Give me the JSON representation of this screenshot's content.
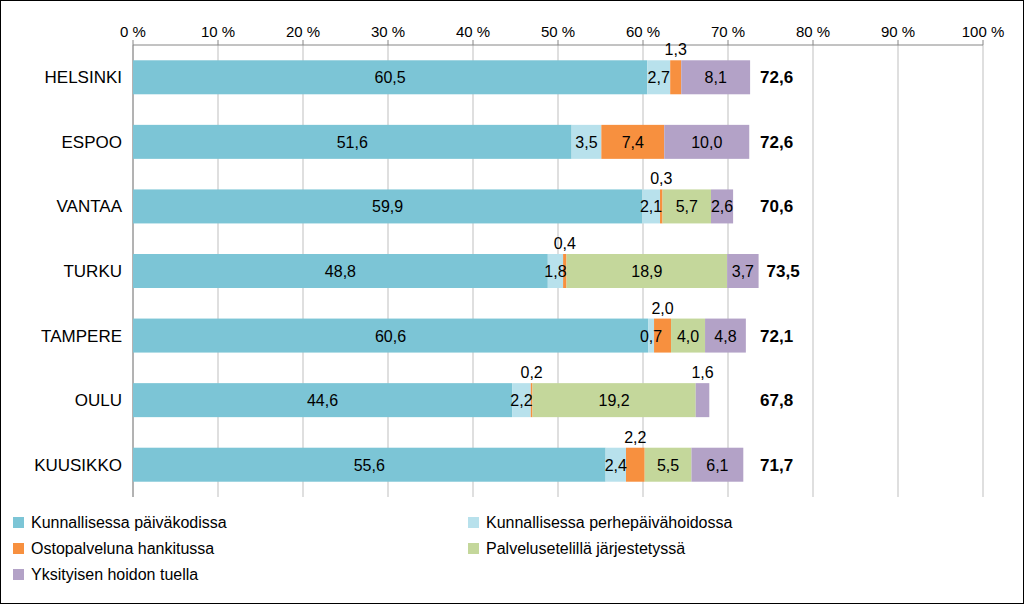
{
  "chart_data": {
    "type": "bar",
    "orientation": "horizontal",
    "stacked": true,
    "data_labels": true,
    "grid": true,
    "legend": "bottom",
    "categories": [
      "HELSINKI",
      "ESPOO",
      "VANTAA",
      "TURKU",
      "TAMPERE",
      "OULU",
      "KUUSIKKO"
    ],
    "xlim": [
      0,
      100
    ],
    "xticks": [
      {
        "value": 0,
        "label": "0 %"
      },
      {
        "value": 10,
        "label": "10 %"
      },
      {
        "value": 20,
        "label": "20 %"
      },
      {
        "value": 30,
        "label": "30 %"
      },
      {
        "value": 40,
        "label": "40 %"
      },
      {
        "value": 50,
        "label": "50 %"
      },
      {
        "value": 60,
        "label": "60 %"
      },
      {
        "value": 70,
        "label": "70 %"
      },
      {
        "value": 80,
        "label": "80 %"
      },
      {
        "value": 90,
        "label": "90 %"
      },
      {
        "value": 100,
        "label": "100 %"
      }
    ],
    "series": [
      {
        "name": "Kunnallisessa päiväkodissa",
        "color": "#7cc5d6",
        "values": [
          60.5,
          51.6,
          59.9,
          48.8,
          60.6,
          44.6,
          55.6
        ],
        "value_labels": [
          "60,5",
          "51,6",
          "59,9",
          "48,8",
          "60,6",
          "44,6",
          "55,6"
        ]
      },
      {
        "name": "Kunnallisessa perhepäivähoidossa",
        "color": "#b8e1ec",
        "values": [
          2.7,
          3.5,
          2.1,
          1.8,
          0.7,
          2.2,
          2.4
        ],
        "value_labels": [
          "2,7",
          "3,5",
          "2,1",
          "1,8",
          "0,7",
          "2,2",
          "2,4"
        ]
      },
      {
        "name": "Ostopalveluna hankitussa",
        "color": "#f7903f",
        "values": [
          1.3,
          7.4,
          0.3,
          0.4,
          2.0,
          0.2,
          2.2
        ],
        "value_labels": [
          "1,3",
          "7,4",
          "0,3",
          "0,4",
          "2,0",
          "0,2",
          "2,2"
        ]
      },
      {
        "name": "Palvelusetelillä järjestetyssä",
        "color": "#c4d79b",
        "values": [
          null,
          null,
          5.7,
          18.9,
          4.0,
          19.2,
          5.5
        ],
        "value_labels": [
          null,
          null,
          "5,7",
          "18,9",
          "4,0",
          "19,2",
          "5,5"
        ]
      },
      {
        "name": "Yksityisen hoidon tuella",
        "color": "#b3a2c7",
        "values": [
          8.1,
          10.0,
          2.6,
          3.7,
          4.8,
          1.6,
          6.1
        ],
        "value_labels": [
          "8,1",
          "10,0",
          "2,6",
          "3,7",
          "4,8",
          "1,6",
          "6,1"
        ]
      }
    ],
    "totals": [
      72.6,
      72.6,
      70.6,
      73.5,
      72.1,
      67.8,
      71.7
    ],
    "total_labels": [
      "72,6",
      "72,6",
      "70,6",
      "73,5",
      "72,1",
      "67,8",
      "71,7"
    ]
  }
}
